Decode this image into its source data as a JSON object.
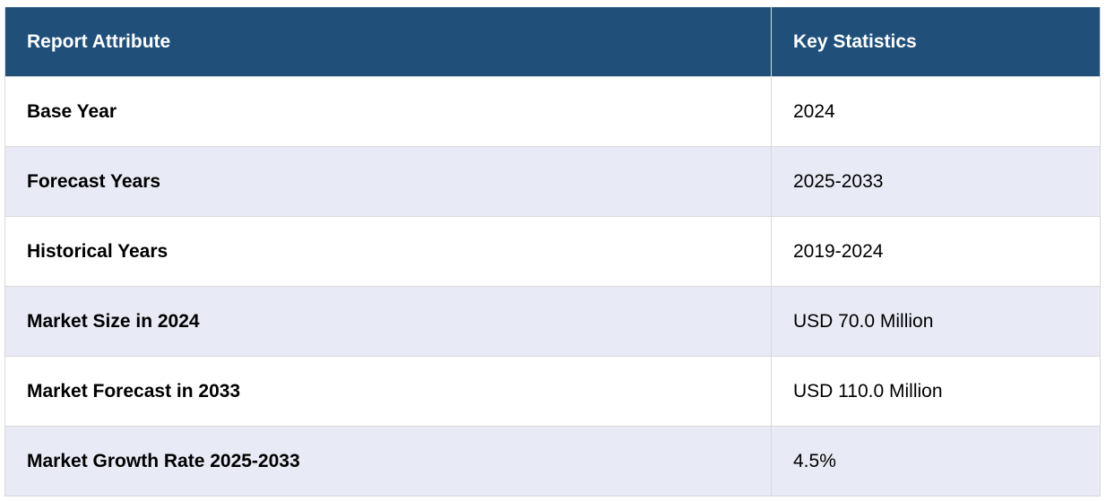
{
  "table": {
    "headers": {
      "attribute": "Report Attribute",
      "statistics": "Key Statistics"
    },
    "rows": [
      {
        "attribute": "Base Year",
        "value": "2024"
      },
      {
        "attribute": "Forecast Years",
        "value": "2025-2033"
      },
      {
        "attribute": "Historical Years",
        "value": "2019-2024"
      },
      {
        "attribute": "Market Size in 2024",
        "value": "USD 70.0 Million"
      },
      {
        "attribute": "Market Forecast in 2033",
        "value": "USD 110.0 Million"
      },
      {
        "attribute": "Market Growth Rate 2025-2033",
        "value": "4.5%"
      }
    ]
  },
  "colors": {
    "header_background": "#20507a",
    "header_text": "#ffffff",
    "row_alt_background": "#e8eaf5",
    "row_background": "#ffffff",
    "border": "#d9d9d9"
  }
}
